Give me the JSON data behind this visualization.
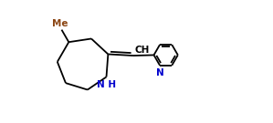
{
  "background_color": "#ffffff",
  "line_color": "#000000",
  "label_color_N": "#0000cd",
  "label_color_Me": "#8b4513",
  "figsize": [
    2.99,
    1.35
  ],
  "dpi": 100,
  "xlim": [
    0,
    9.5
  ],
  "ylim": [
    0,
    3.2
  ]
}
